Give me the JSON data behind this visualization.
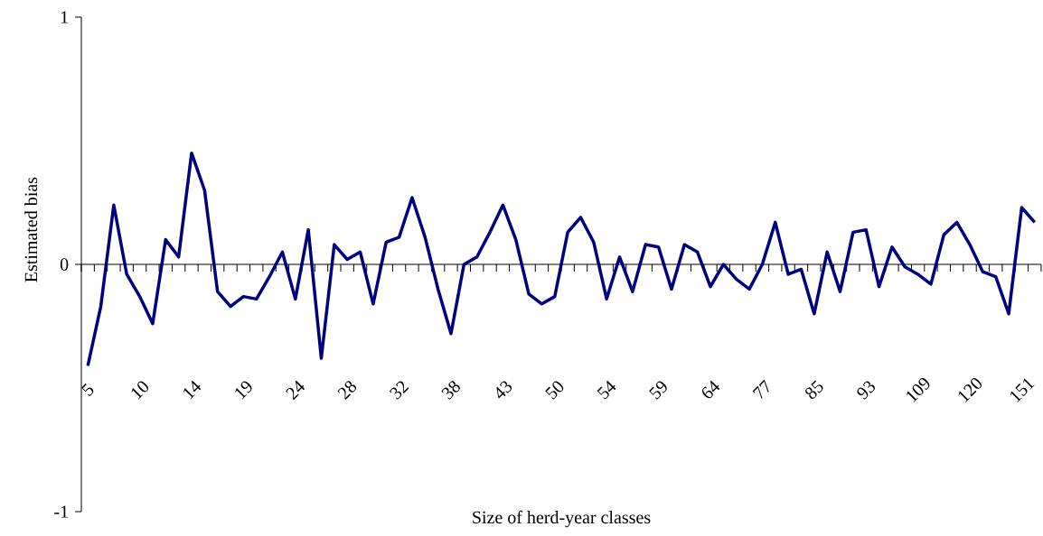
{
  "chart_data": {
    "type": "line",
    "xlabel": "Size of herd-year classes",
    "ylabel": "Estimated bias",
    "categories": [
      "5",
      null,
      null,
      null,
      "10",
      null,
      null,
      null,
      "14",
      null,
      null,
      null,
      "19",
      null,
      null,
      null,
      "24",
      null,
      null,
      null,
      "28",
      null,
      null,
      null,
      "32",
      null,
      null,
      null,
      "38",
      null,
      null,
      null,
      "43",
      null,
      null,
      null,
      "50",
      null,
      null,
      null,
      "54",
      null,
      null,
      null,
      "59",
      null,
      null,
      null,
      "64",
      null,
      null,
      null,
      "77",
      null,
      null,
      null,
      "85",
      null,
      null,
      null,
      "93",
      null,
      null,
      null,
      "109",
      null,
      null,
      null,
      "120",
      null,
      null,
      null,
      "151",
      null
    ],
    "values": [
      -0.41,
      -0.17,
      0.24,
      -0.04,
      -0.13,
      -0.24,
      0.1,
      0.03,
      0.45,
      0.3,
      -0.11,
      -0.17,
      -0.13,
      -0.14,
      -0.05,
      0.05,
      -0.14,
      0.14,
      -0.38,
      0.08,
      0.02,
      0.05,
      -0.16,
      0.09,
      0.11,
      0.27,
      0.11,
      -0.1,
      -0.28,
      0.0,
      0.03,
      0.13,
      0.24,
      0.1,
      -0.12,
      -0.16,
      -0.13,
      0.13,
      0.19,
      0.09,
      -0.14,
      0.03,
      -0.11,
      0.08,
      0.07,
      -0.1,
      0.08,
      0.05,
      -0.09,
      0.0,
      -0.06,
      -0.1,
      0.0,
      0.17,
      -0.04,
      -0.02,
      -0.2,
      0.05,
      -0.11,
      0.13,
      0.14,
      -0.09,
      0.07,
      -0.01,
      -0.04,
      -0.08,
      0.12,
      0.17,
      0.08,
      -0.03,
      -0.05,
      -0.2,
      0.23,
      0.17
    ],
    "color": "#000080",
    "line_style": "solid",
    "marker": "none",
    "ylim": [
      -1,
      1
    ],
    "yticks": [
      -1,
      0,
      1
    ]
  }
}
